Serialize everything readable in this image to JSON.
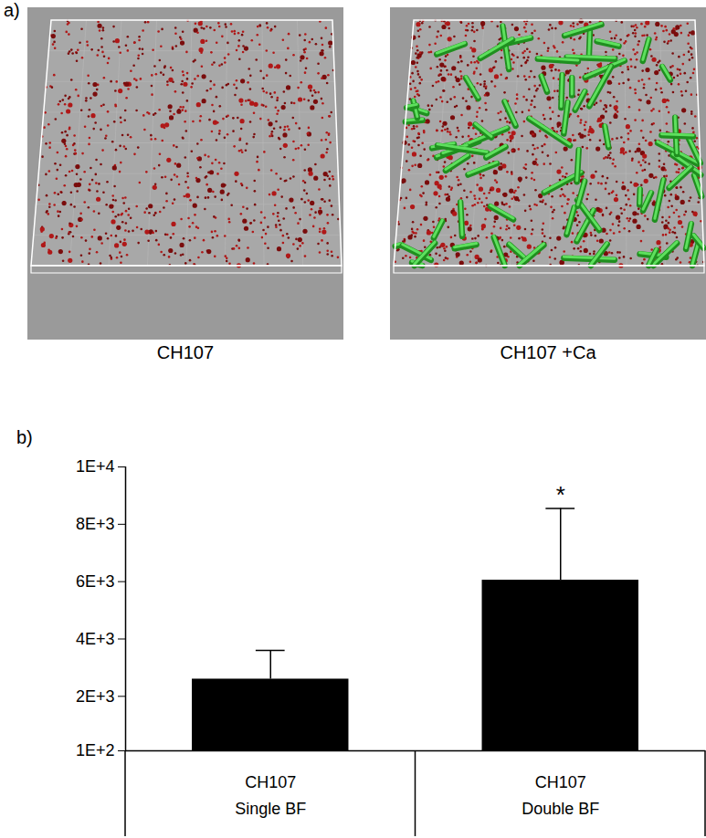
{
  "image_panel": {
    "panel_label": "a)",
    "captions": [
      "CH107",
      "CH107 +Ca"
    ]
  },
  "chart_data": {
    "type": "bar",
    "panel_label": "b)",
    "categories": [
      "CH107",
      "CH107"
    ],
    "group_labels": [
      "Single BF",
      "Double BF"
    ],
    "values": [
      2600,
      6050
    ],
    "errors": [
      1000,
      2500
    ],
    "color": "#000000",
    "ylim": [
      100,
      10000
    ],
    "yticks": [
      {
        "value": 100,
        "label": "1E+2"
      },
      {
        "value": 2000,
        "label": "2E+3"
      },
      {
        "value": 4000,
        "label": "4E+3"
      },
      {
        "value": 6000,
        "label": "6E+3"
      },
      {
        "value": 8000,
        "label": "8E+3"
      },
      {
        "value": 10000,
        "label": "1E+4"
      }
    ],
    "annotations": [
      {
        "text": "*",
        "category_index": 1
      }
    ]
  }
}
